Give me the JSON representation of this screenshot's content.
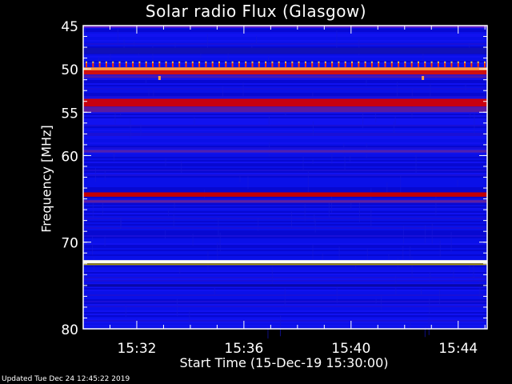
{
  "chart_data": {
    "type": "heatmap",
    "title": "Solar radio Flux (Glasgow)",
    "xlabel": "Start Time (15-Dec-19 15:30:00)",
    "ylabel": "Frequency [MHz]",
    "x_unit": "time (HH:MM)",
    "xlim": [
      "15:30:00",
      "15:45:05"
    ],
    "ylim": [
      45,
      80
    ],
    "y_inverted": true,
    "x_ticks": [
      "15:32",
      "15:36",
      "15:40",
      "15:44"
    ],
    "y_ticks": [
      "45",
      "50",
      "55",
      "60",
      "70",
      "80"
    ],
    "background_color": "#0a10e8",
    "bands": [
      {
        "freq_mhz": 45.1,
        "width_mhz": 0.3,
        "color": "#6a22c8"
      },
      {
        "freq_mhz": 47.9,
        "width_mhz": 0.7,
        "color": "#1010b8"
      },
      {
        "freq_mhz": 50.0,
        "width_mhz": 0.35,
        "color": "#ffa040"
      },
      {
        "freq_mhz": 50.4,
        "width_mhz": 0.5,
        "color": "#d01010"
      },
      {
        "freq_mhz": 50.9,
        "width_mhz": 0.3,
        "color": "#4a18b0"
      },
      {
        "freq_mhz": 53.9,
        "width_mhz": 0.9,
        "color": "#c80010"
      },
      {
        "freq_mhz": 54.7,
        "width_mhz": 0.6,
        "color": "#5a1aa0"
      },
      {
        "freq_mhz": 59.5,
        "width_mhz": 0.3,
        "color": "#5020b0"
      },
      {
        "freq_mhz": 64.5,
        "width_mhz": 0.5,
        "color": "#c40000"
      },
      {
        "freq_mhz": 65.3,
        "width_mhz": 0.3,
        "color": "#6020a0"
      },
      {
        "freq_mhz": 72.25,
        "width_mhz": 0.35,
        "color": "#fffff0"
      },
      {
        "freq_mhz": 72.55,
        "width_mhz": 0.2,
        "color": "#a09000"
      },
      {
        "freq_mhz": 75.0,
        "width_mhz": 0.3,
        "color": "#0808a8"
      }
    ],
    "periodic_spikes": {
      "freq_mhz": 49.6,
      "color": "#ff3000"
    },
    "point_bursts": [
      {
        "time": "15:32:50",
        "freq_mhz": 51.0,
        "color": "#ffa040"
      },
      {
        "time": "15:42:40",
        "freq_mhz": 51.0,
        "color": "#ffa040"
      }
    ]
  },
  "footer": "Updated Tue Dec 24 12:45:22 2019"
}
